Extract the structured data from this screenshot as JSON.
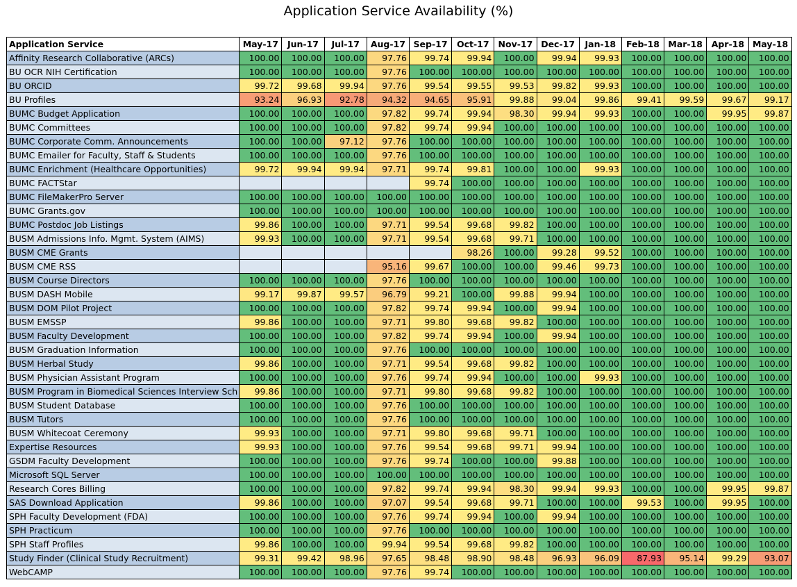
{
  "chart_data": {
    "type": "heatmap",
    "title": "Application Service Availability (%)",
    "row_header": "Application Service",
    "columns": [
      "May-17",
      "Jun-17",
      "Jul-17",
      "Aug-17",
      "Sep-17",
      "Oct-17",
      "Nov-17",
      "Dec-17",
      "Jan-18",
      "Feb-18",
      "Mar-18",
      "Apr-18",
      "May-18"
    ],
    "color_scale": {
      "stops": [
        {
          "value": 87.93,
          "color": "#f8696b"
        },
        {
          "value": 94.0,
          "color": "#f7a477"
        },
        {
          "value": 97.0,
          "color": "#fbd07e"
        },
        {
          "value": 99.5,
          "color": "#ffeb84"
        },
        {
          "value": 100.0,
          "color": "#63be7b"
        }
      ],
      "name_band_colors": [
        "#b8cce4",
        "#dce6f1"
      ],
      "empty_color": "#dce6f1"
    },
    "rows": [
      {
        "name": "Affinity Research Collaborative (ARCs)",
        "values": [
          100.0,
          100.0,
          100.0,
          97.76,
          99.74,
          99.94,
          100.0,
          99.94,
          99.93,
          100.0,
          100.0,
          100.0,
          100.0
        ]
      },
      {
        "name": "BU OCR NIH Certification",
        "values": [
          100.0,
          100.0,
          100.0,
          97.76,
          100.0,
          100.0,
          100.0,
          100.0,
          100.0,
          100.0,
          100.0,
          100.0,
          100.0
        ]
      },
      {
        "name": "BU ORCID",
        "values": [
          99.72,
          99.68,
          99.94,
          97.76,
          99.54,
          99.55,
          99.53,
          99.82,
          99.93,
          100.0,
          100.0,
          100.0,
          100.0
        ]
      },
      {
        "name": "BU Profiles",
        "values": [
          93.24,
          96.93,
          92.78,
          94.32,
          94.65,
          95.91,
          99.88,
          99.04,
          99.86,
          99.41,
          99.59,
          99.67,
          99.17
        ]
      },
      {
        "name": "BUMC Budget Application",
        "values": [
          100.0,
          100.0,
          100.0,
          97.82,
          99.74,
          99.94,
          98.3,
          99.94,
          99.93,
          100.0,
          100.0,
          99.95,
          99.87
        ]
      },
      {
        "name": "BUMC Committees",
        "values": [
          100.0,
          100.0,
          100.0,
          97.82,
          99.74,
          99.94,
          100.0,
          100.0,
          100.0,
          100.0,
          100.0,
          100.0,
          100.0
        ]
      },
      {
        "name": "BUMC Corporate Comm. Announcements",
        "values": [
          100.0,
          100.0,
          97.12,
          97.76,
          100.0,
          100.0,
          100.0,
          100.0,
          100.0,
          100.0,
          100.0,
          100.0,
          100.0
        ]
      },
      {
        "name": "BUMC Emailer for Faculty, Staff & Students",
        "values": [
          100.0,
          100.0,
          100.0,
          97.76,
          100.0,
          100.0,
          100.0,
          100.0,
          100.0,
          100.0,
          100.0,
          100.0,
          100.0
        ]
      },
      {
        "name": "BUMC Enrichment (Healthcare Opportunities)",
        "values": [
          99.72,
          99.94,
          99.94,
          97.71,
          99.74,
          99.81,
          100.0,
          100.0,
          99.93,
          100.0,
          100.0,
          100.0,
          100.0
        ]
      },
      {
        "name": "BUMC FACTStar",
        "values": [
          null,
          null,
          null,
          null,
          99.74,
          100.0,
          100.0,
          100.0,
          100.0,
          100.0,
          100.0,
          100.0,
          100.0
        ]
      },
      {
        "name": "BUMC FileMakerPro Server",
        "values": [
          100.0,
          100.0,
          100.0,
          100.0,
          100.0,
          100.0,
          100.0,
          100.0,
          100.0,
          100.0,
          100.0,
          100.0,
          100.0
        ]
      },
      {
        "name": "BUMC Grants.gov",
        "values": [
          100.0,
          100.0,
          100.0,
          100.0,
          100.0,
          100.0,
          100.0,
          100.0,
          100.0,
          100.0,
          100.0,
          100.0,
          100.0
        ]
      },
      {
        "name": "BUMC Postdoc Job Listings",
        "values": [
          99.86,
          100.0,
          100.0,
          97.71,
          99.54,
          99.68,
          99.82,
          100.0,
          100.0,
          100.0,
          100.0,
          100.0,
          100.0
        ]
      },
      {
        "name": "BUSM Admissions Info. Mgmt. System (AIMS)",
        "values": [
          99.93,
          100.0,
          100.0,
          97.71,
          99.54,
          99.68,
          99.71,
          100.0,
          100.0,
          100.0,
          100.0,
          100.0,
          100.0
        ]
      },
      {
        "name": "BUSM CME Grants",
        "values": [
          null,
          null,
          null,
          null,
          null,
          98.26,
          100.0,
          99.28,
          99.52,
          100.0,
          100.0,
          100.0,
          100.0
        ]
      },
      {
        "name": "BUSM CME RSS",
        "values": [
          null,
          null,
          null,
          95.16,
          99.67,
          100.0,
          100.0,
          99.46,
          99.73,
          100.0,
          100.0,
          100.0,
          100.0
        ]
      },
      {
        "name": "BUSM Course Directors",
        "values": [
          100.0,
          100.0,
          100.0,
          97.76,
          100.0,
          100.0,
          100.0,
          100.0,
          100.0,
          100.0,
          100.0,
          100.0,
          100.0
        ]
      },
      {
        "name": "BUSM DASH Mobile",
        "values": [
          99.17,
          99.87,
          99.57,
          96.79,
          99.21,
          100.0,
          99.88,
          99.94,
          100.0,
          100.0,
          100.0,
          100.0,
          100.0
        ]
      },
      {
        "name": "BUSM DOM Pilot Project",
        "values": [
          100.0,
          100.0,
          100.0,
          97.82,
          99.74,
          99.94,
          100.0,
          99.94,
          100.0,
          100.0,
          100.0,
          100.0,
          100.0
        ]
      },
      {
        "name": "BUSM EMSSP",
        "values": [
          99.86,
          100.0,
          100.0,
          97.71,
          99.8,
          99.68,
          99.82,
          100.0,
          100.0,
          100.0,
          100.0,
          100.0,
          100.0
        ]
      },
      {
        "name": "BUSM Faculty Development",
        "values": [
          100.0,
          100.0,
          100.0,
          97.82,
          99.74,
          99.94,
          100.0,
          99.94,
          100.0,
          100.0,
          100.0,
          100.0,
          100.0
        ]
      },
      {
        "name": "BUSM Graduation Information",
        "values": [
          100.0,
          100.0,
          100.0,
          97.76,
          100.0,
          100.0,
          100.0,
          100.0,
          100.0,
          100.0,
          100.0,
          100.0,
          100.0
        ]
      },
      {
        "name": "BUSM Herbal Study",
        "values": [
          99.86,
          100.0,
          100.0,
          97.71,
          99.54,
          99.68,
          99.82,
          100.0,
          100.0,
          100.0,
          100.0,
          100.0,
          100.0
        ]
      },
      {
        "name": "BUSM Physician Assistant Program",
        "values": [
          100.0,
          100.0,
          100.0,
          97.76,
          99.74,
          99.94,
          100.0,
          100.0,
          99.93,
          100.0,
          100.0,
          100.0,
          100.0
        ]
      },
      {
        "name": "BUSM Program in Biomedical Sciences Interview Sch",
        "values": [
          99.86,
          100.0,
          100.0,
          97.71,
          99.8,
          99.68,
          99.82,
          100.0,
          100.0,
          100.0,
          100.0,
          100.0,
          100.0
        ]
      },
      {
        "name": "BUSM Student Database",
        "values": [
          100.0,
          100.0,
          100.0,
          97.76,
          100.0,
          100.0,
          100.0,
          100.0,
          100.0,
          100.0,
          100.0,
          100.0,
          100.0
        ]
      },
      {
        "name": "BUSM Tutors",
        "values": [
          100.0,
          100.0,
          100.0,
          97.76,
          100.0,
          100.0,
          100.0,
          100.0,
          100.0,
          100.0,
          100.0,
          100.0,
          100.0
        ]
      },
      {
        "name": "BUSM Whitecoat Ceremony",
        "values": [
          99.93,
          100.0,
          100.0,
          97.71,
          99.8,
          99.68,
          99.71,
          100.0,
          100.0,
          100.0,
          100.0,
          100.0,
          100.0
        ]
      },
      {
        "name": "Expertise Resources",
        "values": [
          99.93,
          100.0,
          100.0,
          97.76,
          99.54,
          99.68,
          99.71,
          99.94,
          100.0,
          100.0,
          100.0,
          100.0,
          100.0
        ]
      },
      {
        "name": "GSDM Faculty Development",
        "values": [
          100.0,
          100.0,
          100.0,
          97.76,
          99.74,
          100.0,
          100.0,
          99.88,
          100.0,
          100.0,
          100.0,
          100.0,
          100.0
        ]
      },
      {
        "name": "Microsoft SQL Server",
        "values": [
          100.0,
          100.0,
          100.0,
          100.0,
          100.0,
          100.0,
          100.0,
          100.0,
          100.0,
          100.0,
          100.0,
          100.0,
          100.0
        ]
      },
      {
        "name": "Research Cores Billing",
        "values": [
          100.0,
          100.0,
          100.0,
          97.82,
          99.74,
          99.94,
          98.3,
          99.94,
          99.93,
          100.0,
          100.0,
          99.95,
          99.87
        ]
      },
      {
        "name": "SAS Download Application",
        "values": [
          99.86,
          100.0,
          100.0,
          97.07,
          99.54,
          99.68,
          99.71,
          100.0,
          100.0,
          99.53,
          100.0,
          99.95,
          100.0
        ]
      },
      {
        "name": "SPH Faculty Development (FDA)",
        "values": [
          100.0,
          100.0,
          100.0,
          97.76,
          99.74,
          99.94,
          100.0,
          99.94,
          100.0,
          100.0,
          100.0,
          100.0,
          100.0
        ]
      },
      {
        "name": "SPH Practicum",
        "values": [
          100.0,
          100.0,
          100.0,
          97.76,
          100.0,
          100.0,
          100.0,
          100.0,
          100.0,
          100.0,
          100.0,
          100.0,
          100.0
        ]
      },
      {
        "name": "SPH Staff Profiles",
        "values": [
          99.86,
          100.0,
          100.0,
          99.94,
          99.54,
          99.68,
          99.82,
          100.0,
          100.0,
          100.0,
          100.0,
          100.0,
          100.0
        ]
      },
      {
        "name": "Study Finder (Clinical Study Recruitment)",
        "values": [
          99.31,
          99.42,
          98.96,
          97.65,
          98.48,
          98.9,
          98.48,
          96.93,
          96.09,
          87.93,
          95.14,
          99.29,
          93.07
        ]
      },
      {
        "name": "WebCAMP",
        "values": [
          100.0,
          100.0,
          100.0,
          97.76,
          99.74,
          100.0,
          100.0,
          100.0,
          100.0,
          100.0,
          100.0,
          100.0,
          100.0
        ]
      }
    ]
  }
}
